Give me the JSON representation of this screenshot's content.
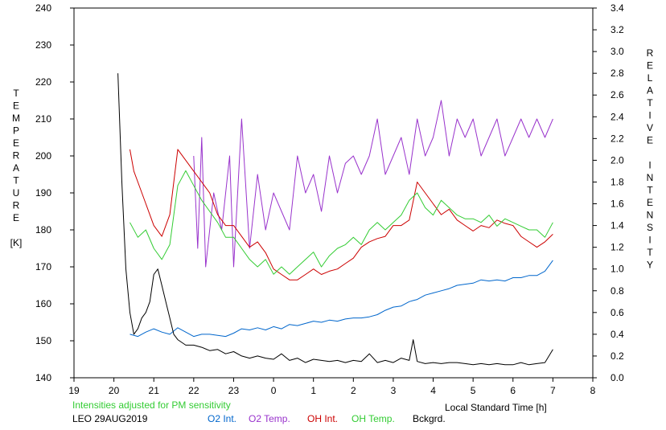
{
  "chart_data": {
    "type": "line",
    "station": "LEO 29AUG2019",
    "note": "Intensities adjusted for PM sensitivity",
    "xlabel": "Local Standard Time [h]",
    "x_ticks": [
      "19",
      "20",
      "21",
      "22",
      "23",
      "0",
      "1",
      "2",
      "3",
      "4",
      "5",
      "6",
      "7",
      "8"
    ],
    "xlim": [
      19,
      32
    ],
    "ylabel_left_letters": [
      "T",
      "E",
      "M",
      "P",
      "E",
      "R",
      "A",
      "T",
      "U",
      "R",
      "E",
      "",
      "[K]"
    ],
    "ylim_left": [
      140,
      240
    ],
    "y_ticks_left": [
      "140",
      "150",
      "160",
      "170",
      "180",
      "190",
      "200",
      "210",
      "220",
      "230",
      "240"
    ],
    "ylabel_right_letters": [
      "R",
      "E",
      "L",
      "A",
      "T",
      "I",
      "V",
      "E",
      "",
      "I",
      "N",
      "T",
      "E",
      "N",
      "S",
      "I",
      "T",
      "Y"
    ],
    "ylim_right": [
      0.0,
      3.4
    ],
    "y_ticks_right": [
      "0.0",
      "0.2",
      "0.4",
      "0.6",
      "0.8",
      "1.0",
      "1.2",
      "1.4",
      "1.6",
      "1.8",
      "2.0",
      "2.2",
      "2.4",
      "2.6",
      "2.8",
      "3.0",
      "3.2",
      "3.4"
    ],
    "grid": false,
    "legend": "bottom",
    "series": [
      {
        "name": "O2 Int.",
        "axis": "right",
        "color": "#0066cc",
        "x": [
          20.4,
          20.6,
          20.8,
          21.0,
          21.2,
          21.4,
          21.6,
          21.8,
          22.0,
          22.2,
          22.4,
          22.6,
          22.8,
          23.0,
          23.2,
          23.4,
          23.6,
          23.8,
          24.0,
          24.2,
          24.4,
          24.6,
          24.8,
          25.0,
          25.2,
          25.4,
          25.6,
          25.8,
          26.0,
          26.2,
          26.4,
          26.6,
          26.8,
          27.0,
          27.2,
          27.4,
          27.5,
          27.6,
          27.8,
          28.0,
          28.2,
          28.4,
          28.6,
          28.8,
          29.0,
          29.2,
          29.4,
          29.6,
          29.8,
          30.0,
          30.2,
          30.4,
          30.6,
          30.8,
          31.0
        ],
        "values": [
          0.4,
          0.38,
          0.42,
          0.45,
          0.42,
          0.4,
          0.46,
          0.42,
          0.38,
          0.4,
          0.4,
          0.39,
          0.38,
          0.41,
          0.45,
          0.44,
          0.46,
          0.44,
          0.47,
          0.45,
          0.49,
          0.48,
          0.5,
          0.52,
          0.51,
          0.53,
          0.52,
          0.54,
          0.55,
          0.55,
          0.56,
          0.58,
          0.62,
          0.65,
          0.66,
          0.7,
          0.71,
          0.72,
          0.76,
          0.78,
          0.8,
          0.82,
          0.85,
          0.86,
          0.87,
          0.9,
          0.89,
          0.9,
          0.89,
          0.92,
          0.92,
          0.94,
          0.94,
          0.98,
          1.08
        ]
      },
      {
        "name": "O2 Temp.",
        "axis": "left",
        "color": "#9933cc",
        "x": [
          22.0,
          22.1,
          22.2,
          22.3,
          22.5,
          22.7,
          22.9,
          23.0,
          23.2,
          23.4,
          23.6,
          23.8,
          24.0,
          24.2,
          24.4,
          24.6,
          24.8,
          25.0,
          25.2,
          25.4,
          25.6,
          25.8,
          26.0,
          26.2,
          26.4,
          26.6,
          26.8,
          27.0,
          27.2,
          27.4,
          27.6,
          27.8,
          28.0,
          28.2,
          28.4,
          28.6,
          28.8,
          29.0,
          29.2,
          29.4,
          29.6,
          29.8,
          30.0,
          30.2,
          30.4,
          30.6,
          30.8,
          31.0
        ],
        "values": [
          200,
          175,
          205,
          170,
          190,
          180,
          200,
          170,
          210,
          175,
          195,
          180,
          190,
          185,
          180,
          200,
          190,
          195,
          185,
          200,
          190,
          198,
          200,
          195,
          200,
          210,
          195,
          200,
          205,
          195,
          210,
          200,
          205,
          215,
          200,
          210,
          205,
          210,
          200,
          205,
          210,
          200,
          205,
          210,
          205,
          210,
          205,
          210
        ]
      },
      {
        "name": "OH Int.",
        "axis": "right",
        "color": "#cc0000",
        "x": [
          20.4,
          20.5,
          20.6,
          20.8,
          21.0,
          21.2,
          21.4,
          21.6,
          21.8,
          22.0,
          22.2,
          22.4,
          22.6,
          22.8,
          23.0,
          23.2,
          23.4,
          23.6,
          23.8,
          24.0,
          24.2,
          24.4,
          24.6,
          24.8,
          25.0,
          25.2,
          25.4,
          25.6,
          25.8,
          26.0,
          26.2,
          26.4,
          26.6,
          26.8,
          27.0,
          27.2,
          27.4,
          27.6,
          27.8,
          28.0,
          28.2,
          28.4,
          28.6,
          28.8,
          29.0,
          29.2,
          29.4,
          29.6,
          29.8,
          30.0,
          30.2,
          30.4,
          30.6,
          30.8,
          31.0
        ],
        "values": [
          2.1,
          1.9,
          1.8,
          1.6,
          1.4,
          1.3,
          1.5,
          2.1,
          2.0,
          1.9,
          1.8,
          1.7,
          1.5,
          1.4,
          1.4,
          1.3,
          1.2,
          1.25,
          1.15,
          1.0,
          0.95,
          0.9,
          0.9,
          0.95,
          1.0,
          0.95,
          0.98,
          1.0,
          1.05,
          1.1,
          1.2,
          1.25,
          1.28,
          1.3,
          1.4,
          1.4,
          1.45,
          1.8,
          1.7,
          1.6,
          1.5,
          1.55,
          1.45,
          1.4,
          1.35,
          1.4,
          1.38,
          1.45,
          1.42,
          1.4,
          1.3,
          1.25,
          1.2,
          1.25,
          1.32
        ]
      },
      {
        "name": "OH Temp.",
        "axis": "left",
        "color": "#33cc33",
        "x": [
          20.4,
          20.6,
          20.8,
          21.0,
          21.2,
          21.4,
          21.6,
          21.8,
          22.0,
          22.2,
          22.4,
          22.6,
          22.8,
          23.0,
          23.2,
          23.4,
          23.6,
          23.8,
          24.0,
          24.2,
          24.4,
          24.6,
          24.8,
          25.0,
          25.2,
          25.4,
          25.6,
          25.8,
          26.0,
          26.2,
          26.4,
          26.6,
          26.8,
          27.0,
          27.2,
          27.4,
          27.6,
          27.8,
          28.0,
          28.2,
          28.4,
          28.6,
          28.8,
          29.0,
          29.2,
          29.4,
          29.6,
          29.8,
          30.0,
          30.2,
          30.4,
          30.6,
          30.8,
          31.0
        ],
        "values": [
          182,
          178,
          180,
          175,
          172,
          176,
          192,
          196,
          192,
          188,
          185,
          182,
          178,
          178,
          175,
          172,
          170,
          172,
          168,
          170,
          168,
          170,
          172,
          174,
          170,
          173,
          175,
          176,
          178,
          176,
          180,
          182,
          180,
          182,
          184,
          188,
          190,
          186,
          184,
          188,
          186,
          184,
          183,
          183,
          182,
          184,
          181,
          183,
          182,
          181,
          180,
          180,
          178,
          182
        ]
      },
      {
        "name": "Bckgrd.",
        "axis": "right",
        "color": "#000000",
        "x": [
          20.1,
          20.2,
          20.3,
          20.4,
          20.5,
          20.6,
          20.7,
          20.8,
          20.9,
          21.0,
          21.1,
          21.2,
          21.3,
          21.4,
          21.5,
          21.6,
          21.8,
          22.0,
          22.2,
          22.4,
          22.6,
          22.8,
          23.0,
          23.2,
          23.4,
          23.6,
          23.8,
          24.0,
          24.2,
          24.4,
          24.6,
          24.8,
          25.0,
          25.2,
          25.4,
          25.6,
          25.8,
          26.0,
          26.2,
          26.4,
          26.6,
          26.8,
          27.0,
          27.2,
          27.4,
          27.5,
          27.6,
          27.8,
          28.0,
          28.2,
          28.4,
          28.6,
          28.8,
          29.0,
          29.2,
          29.4,
          29.6,
          29.8,
          30.0,
          30.2,
          30.4,
          30.6,
          30.8,
          31.0
        ],
        "values": [
          2.8,
          1.8,
          1.0,
          0.6,
          0.4,
          0.45,
          0.55,
          0.6,
          0.7,
          0.95,
          1.0,
          0.85,
          0.7,
          0.55,
          0.4,
          0.35,
          0.3,
          0.3,
          0.28,
          0.25,
          0.26,
          0.22,
          0.24,
          0.2,
          0.18,
          0.2,
          0.18,
          0.17,
          0.22,
          0.16,
          0.18,
          0.14,
          0.17,
          0.16,
          0.15,
          0.16,
          0.14,
          0.16,
          0.15,
          0.22,
          0.14,
          0.16,
          0.14,
          0.18,
          0.16,
          0.35,
          0.15,
          0.13,
          0.14,
          0.13,
          0.14,
          0.14,
          0.13,
          0.12,
          0.13,
          0.12,
          0.13,
          0.12,
          0.12,
          0.14,
          0.12,
          0.13,
          0.14,
          0.26
        ]
      }
    ]
  }
}
